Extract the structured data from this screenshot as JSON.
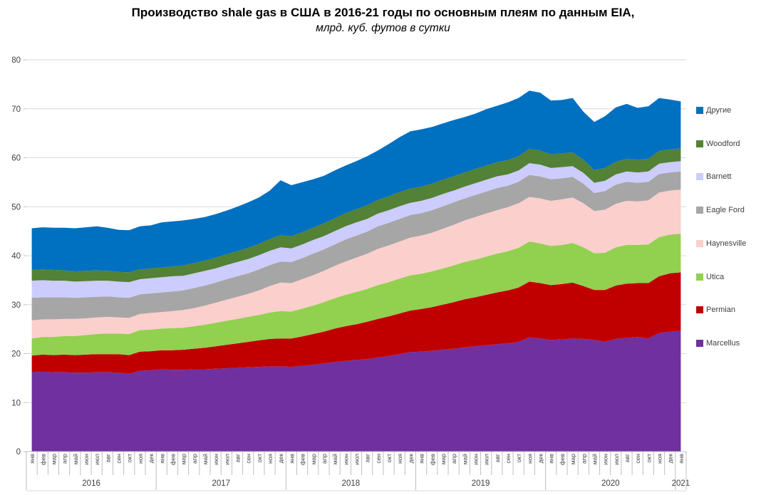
{
  "header": {
    "title": "Производство shale gas в США в 2016-21 годы по основным плеям по данным EIA,",
    "subtitle": "млрд. куб. футов в сутки"
  },
  "chart_data": {
    "type": "area",
    "stacked": true,
    "title": "Производство shale gas в США в 2016-21 годы по основным плеям по данным EIA,",
    "subtitle": "млрд. куб. футов в сутки",
    "units": "млрд. куб. футов в сутки",
    "grid": true,
    "ylim": [
      0,
      80
    ],
    "ytick_step": 10,
    "yticks": [
      0,
      10,
      20,
      30,
      40,
      50,
      60,
      70,
      80
    ],
    "legend_position": "right",
    "month_labels": [
      "янв",
      "фев",
      "мар",
      "апр",
      "май",
      "июн",
      "июл",
      "авг",
      "сен",
      "окт",
      "ноя",
      "дек"
    ],
    "years": [
      {
        "label": "2016",
        "months": 12
      },
      {
        "label": "2017",
        "months": 12
      },
      {
        "label": "2018",
        "months": 12
      },
      {
        "label": "2019",
        "months": 12
      },
      {
        "label": "2020",
        "months": 12
      },
      {
        "label": "2021",
        "months": 1
      }
    ],
    "colors": {
      "grid": "#d9d9d9",
      "axis": "#bfbfbf",
      "tick_label": "#404040"
    },
    "series": [
      {
        "name": "Marcellus",
        "color": "#7030a0",
        "values": [
          16.2,
          16.3,
          16.2,
          16.2,
          16.1,
          16.1,
          16.2,
          16.2,
          16.1,
          15.9,
          16.5,
          16.6,
          16.8,
          16.7,
          16.7,
          16.8,
          16.8,
          16.9,
          17.0,
          17.1,
          17.2,
          17.3,
          17.4,
          17.4,
          17.3,
          17.5,
          17.7,
          18.0,
          18.3,
          18.5,
          18.7,
          18.9,
          19.2,
          19.5,
          19.9,
          20.3,
          20.4,
          20.6,
          20.8,
          21.0,
          21.3,
          21.5,
          21.7,
          21.9,
          22.1,
          22.4,
          23.3,
          23.1,
          22.8,
          22.9,
          23.1,
          23.0,
          22.8,
          22.4,
          23.0,
          23.2,
          23.4,
          23.1,
          24.2,
          24.5,
          24.7
        ]
      },
      {
        "name": "Permian",
        "color": "#c00000",
        "values": [
          3.4,
          3.5,
          3.5,
          3.6,
          3.6,
          3.7,
          3.7,
          3.7,
          3.8,
          3.8,
          3.9,
          3.9,
          3.9,
          4.0,
          4.1,
          4.2,
          4.4,
          4.6,
          4.8,
          5.0,
          5.2,
          5.4,
          5.6,
          5.7,
          5.8,
          6.0,
          6.3,
          6.5,
          6.8,
          7.1,
          7.3,
          7.6,
          7.9,
          8.1,
          8.3,
          8.5,
          8.7,
          8.9,
          9.2,
          9.5,
          9.8,
          10.0,
          10.3,
          10.6,
          10.8,
          11.1,
          11.4,
          11.3,
          11.2,
          11.3,
          11.4,
          10.8,
          10.2,
          10.6,
          10.9,
          11.1,
          11.0,
          11.3,
          11.6,
          11.9,
          11.9
        ]
      },
      {
        "name": "Utica",
        "color": "#92d050",
        "values": [
          3.5,
          3.6,
          3.7,
          3.8,
          3.9,
          4.0,
          4.1,
          4.2,
          4.2,
          4.3,
          4.4,
          4.4,
          4.4,
          4.5,
          4.5,
          4.6,
          4.7,
          4.8,
          4.9,
          5.0,
          5.1,
          5.2,
          5.4,
          5.6,
          5.5,
          5.7,
          5.8,
          6.0,
          6.2,
          6.4,
          6.6,
          6.7,
          6.9,
          7.0,
          7.1,
          7.2,
          7.2,
          7.3,
          7.4,
          7.5,
          7.6,
          7.7,
          7.8,
          7.9,
          8.0,
          8.1,
          8.2,
          8.1,
          8.0,
          8.0,
          8.1,
          7.9,
          7.5,
          7.6,
          7.8,
          7.9,
          7.8,
          7.9,
          8.0,
          7.9,
          7.9
        ]
      },
      {
        "name": "Haynesville",
        "color": "#fbcfcb",
        "values": [
          3.7,
          3.6,
          3.6,
          3.5,
          3.5,
          3.4,
          3.4,
          3.4,
          3.3,
          3.3,
          3.3,
          3.4,
          3.4,
          3.5,
          3.6,
          3.7,
          3.9,
          4.1,
          4.3,
          4.5,
          4.7,
          5.0,
          5.4,
          5.8,
          5.8,
          6.0,
          6.2,
          6.4,
          6.6,
          6.8,
          7.0,
          7.2,
          7.4,
          7.5,
          7.6,
          7.7,
          7.8,
          7.9,
          8.1,
          8.3,
          8.5,
          8.7,
          8.8,
          8.9,
          9.0,
          9.1,
          9.1,
          9.2,
          9.2,
          9.3,
          9.3,
          9.0,
          8.6,
          8.8,
          8.9,
          9.0,
          8.9,
          9.0,
          9.1,
          9.0,
          9.0
        ]
      },
      {
        "name": "Eagle Ford",
        "color": "#a6a6a6",
        "values": [
          4.6,
          4.5,
          4.5,
          4.4,
          4.3,
          4.3,
          4.2,
          4.2,
          4.1,
          4.1,
          4.0,
          4.0,
          4.0,
          4.0,
          4.0,
          4.1,
          4.1,
          4.1,
          4.2,
          4.2,
          4.2,
          4.3,
          4.3,
          4.3,
          4.3,
          4.3,
          4.4,
          4.4,
          4.4,
          4.5,
          4.5,
          4.5,
          4.6,
          4.6,
          4.6,
          4.6,
          4.6,
          4.6,
          4.6,
          4.6,
          4.5,
          4.5,
          4.5,
          4.5,
          4.4,
          4.4,
          4.5,
          4.5,
          4.4,
          4.3,
          4.2,
          4.0,
          3.7,
          3.8,
          3.9,
          3.9,
          3.8,
          3.8,
          3.8,
          3.7,
          3.7
        ]
      },
      {
        "name": "Barnett",
        "color": "#ccccff",
        "values": [
          3.5,
          3.5,
          3.4,
          3.4,
          3.3,
          3.3,
          3.3,
          3.2,
          3.2,
          3.2,
          3.1,
          3.1,
          3.1,
          3.1,
          3.0,
          3.0,
          3.0,
          2.9,
          2.9,
          2.9,
          2.9,
          2.9,
          2.9,
          2.9,
          2.8,
          2.8,
          2.8,
          2.7,
          2.7,
          2.7,
          2.7,
          2.6,
          2.6,
          2.6,
          2.6,
          2.5,
          2.5,
          2.5,
          2.5,
          2.4,
          2.4,
          2.4,
          2.4,
          2.4,
          2.3,
          2.3,
          2.4,
          2.4,
          2.3,
          2.3,
          2.2,
          2.2,
          2.1,
          2.1,
          2.1,
          2.1,
          2.1,
          2.1,
          2.1,
          2.1,
          2.1
        ]
      },
      {
        "name": "Woodford",
        "color": "#538135",
        "values": [
          2.2,
          2.2,
          2.2,
          2.1,
          2.1,
          2.1,
          2.1,
          2.0,
          2.0,
          2.0,
          2.0,
          2.0,
          2.0,
          2.0,
          2.1,
          2.1,
          2.1,
          2.2,
          2.2,
          2.2,
          2.3,
          2.3,
          2.4,
          2.5,
          2.5,
          2.5,
          2.5,
          2.6,
          2.6,
          2.7,
          2.7,
          2.8,
          2.8,
          2.8,
          2.9,
          2.9,
          2.9,
          2.9,
          2.9,
          2.9,
          2.9,
          2.9,
          2.9,
          2.9,
          2.9,
          2.9,
          2.9,
          2.9,
          2.8,
          2.8,
          2.8,
          2.7,
          2.6,
          2.6,
          2.6,
          2.6,
          2.6,
          2.6,
          2.6,
          2.6,
          2.6
        ]
      },
      {
        "name": "Другие",
        "color": "#0070c0",
        "values": [
          8.5,
          8.6,
          8.6,
          8.7,
          8.8,
          8.9,
          9.0,
          8.8,
          8.6,
          8.6,
          8.8,
          8.8,
          9.2,
          9.2,
          9.2,
          9.0,
          8.9,
          8.9,
          8.9,
          9.1,
          9.3,
          9.5,
          9.9,
          11.2,
          10.4,
          10.2,
          9.9,
          9.7,
          9.8,
          9.7,
          9.8,
          10.0,
          10.1,
          10.7,
          11.2,
          11.7,
          11.7,
          11.6,
          11.5,
          11.5,
          11.3,
          11.3,
          11.5,
          11.5,
          11.8,
          11.9,
          11.9,
          11.8,
          11.0,
          10.9,
          11.1,
          9.8,
          9.8,
          10.6,
          11.1,
          11.2,
          10.6,
          10.7,
          10.8,
          10.2,
          9.6
        ]
      }
    ],
    "legend_order": [
      "Другие",
      "Woodford",
      "Barnett",
      "Eagle Ford",
      "Haynesville",
      "Utica",
      "Permian",
      "Marcellus"
    ]
  }
}
